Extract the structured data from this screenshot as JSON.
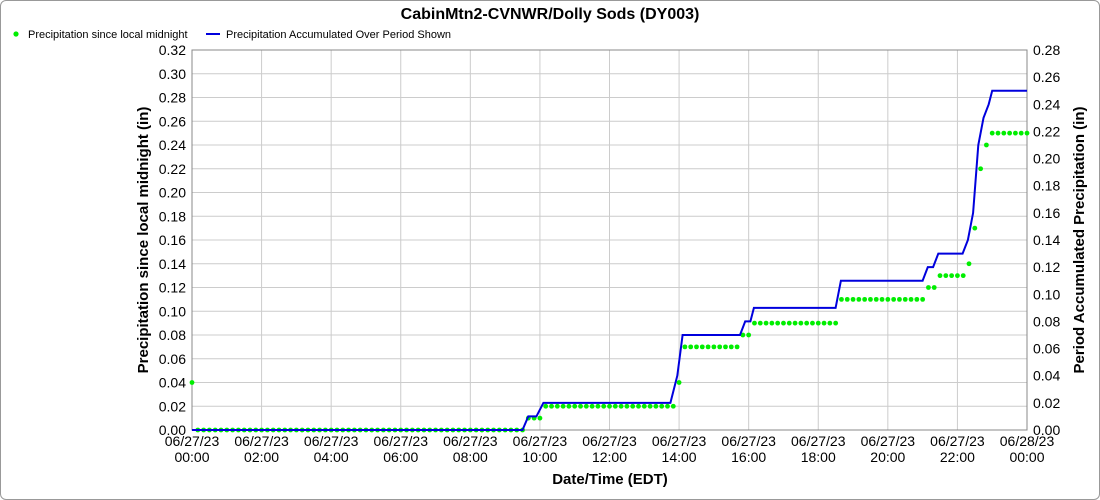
{
  "chart_data": {
    "type": "line",
    "title": "CabinMtn2-CVNWR/Dolly Sods (DY003)",
    "xlabel": "Date/Time (EDT)",
    "ylabel_left": "Precipitation since local midnight (in)",
    "ylabel_right": "Period Accumulated Precipitation (in)",
    "x_range_hours": [
      0,
      24
    ],
    "ylim_left": [
      0,
      0.32
    ],
    "ylim_right": [
      0,
      0.28
    ],
    "y_ticks_left": [
      "0.00",
      "0.02",
      "0.04",
      "0.06",
      "0.08",
      "0.10",
      "0.12",
      "0.14",
      "0.16",
      "0.18",
      "0.20",
      "0.22",
      "0.24",
      "0.26",
      "0.28",
      "0.30",
      "0.32"
    ],
    "y_ticks_right": [
      "0.00",
      "0.02",
      "0.04",
      "0.06",
      "0.08",
      "0.10",
      "0.12",
      "0.14",
      "0.16",
      "0.18",
      "0.20",
      "0.22",
      "0.24",
      "0.26",
      "0.28"
    ],
    "x_ticks": [
      {
        "date": "06/27/23",
        "time": "00:00"
      },
      {
        "date": "06/27/23",
        "time": "02:00"
      },
      {
        "date": "06/27/23",
        "time": "04:00"
      },
      {
        "date": "06/27/23",
        "time": "06:00"
      },
      {
        "date": "06/27/23",
        "time": "08:00"
      },
      {
        "date": "06/27/23",
        "time": "10:00"
      },
      {
        "date": "06/27/23",
        "time": "12:00"
      },
      {
        "date": "06/27/23",
        "time": "14:00"
      },
      {
        "date": "06/27/23",
        "time": "16:00"
      },
      {
        "date": "06/27/23",
        "time": "18:00"
      },
      {
        "date": "06/27/23",
        "time": "20:00"
      },
      {
        "date": "06/27/23",
        "time": "22:00"
      },
      {
        "date": "06/28/23",
        "time": "00:00"
      }
    ],
    "grid": true,
    "legend_position": "top-left",
    "series": [
      {
        "name": "Precipitation since local midnight",
        "axis": "left",
        "style": "points",
        "color": "#00ee00",
        "segments": [
          {
            "from": 0.0,
            "to": 0.0,
            "value": 0.04
          },
          {
            "from": 0.167,
            "to": 9.5,
            "value": 0.0
          },
          {
            "from": 9.667,
            "to": 10.0,
            "value": 0.01
          },
          {
            "from": 10.167,
            "to": 13.833,
            "value": 0.02
          },
          {
            "from": 14.0,
            "to": 14.0,
            "value": 0.04
          },
          {
            "from": 14.167,
            "to": 15.667,
            "value": 0.07
          },
          {
            "from": 15.833,
            "to": 16.0,
            "value": 0.08
          },
          {
            "from": 16.167,
            "to": 18.5,
            "value": 0.09
          },
          {
            "from": 18.667,
            "to": 21.0,
            "value": 0.11
          },
          {
            "from": 21.167,
            "to": 21.333,
            "value": 0.12
          },
          {
            "from": 21.5,
            "to": 22.167,
            "value": 0.13
          },
          {
            "from": 22.333,
            "to": 22.333,
            "value": 0.14
          },
          {
            "from": 22.5,
            "to": 22.5,
            "value": 0.17
          },
          {
            "from": 22.667,
            "to": 22.667,
            "value": 0.22
          },
          {
            "from": 22.833,
            "to": 22.833,
            "value": 0.24
          },
          {
            "from": 23.0,
            "to": 24.0,
            "value": 0.25
          }
        ]
      },
      {
        "name": "Precipitation Accumulated Over Period Shown",
        "axis": "right",
        "style": "line",
        "color": "#0000dd",
        "points": [
          [
            0.0,
            0.0
          ],
          [
            9.5,
            0.0
          ],
          [
            9.667,
            0.01
          ],
          [
            9.9,
            0.01
          ],
          [
            10.1,
            0.02
          ],
          [
            13.75,
            0.02
          ],
          [
            13.95,
            0.04
          ],
          [
            14.1,
            0.07
          ],
          [
            15.75,
            0.07
          ],
          [
            15.9,
            0.08
          ],
          [
            16.05,
            0.08
          ],
          [
            16.15,
            0.09
          ],
          [
            18.5,
            0.09
          ],
          [
            18.65,
            0.11
          ],
          [
            21.0,
            0.11
          ],
          [
            21.15,
            0.12
          ],
          [
            21.3,
            0.12
          ],
          [
            21.45,
            0.13
          ],
          [
            22.15,
            0.13
          ],
          [
            22.3,
            0.14
          ],
          [
            22.45,
            0.16
          ],
          [
            22.6,
            0.21
          ],
          [
            22.75,
            0.23
          ],
          [
            22.9,
            0.24
          ],
          [
            23.0,
            0.25
          ],
          [
            24.0,
            0.25
          ]
        ]
      }
    ]
  }
}
